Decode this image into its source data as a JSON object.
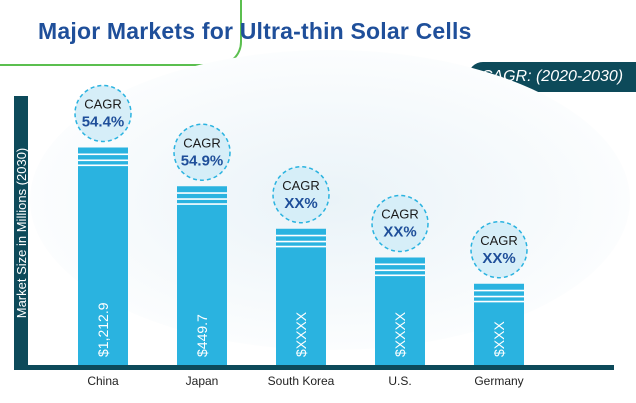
{
  "chart_data": {
    "type": "bar",
    "title": "Major Markets for Ultra-thin Solar Cells",
    "ylabel": "Market Size in Millions (2030)",
    "xlabel": "",
    "cagr_period": "CAGR: (2020-2030)",
    "categories": [
      "China",
      "Japan",
      "South Korea",
      "U.S.",
      "Germany"
    ],
    "values": [
      1212.9,
      449.7,
      null,
      null,
      null
    ],
    "value_labels": [
      "$1,212.9",
      "$449.7",
      "$XXXX",
      "$XXXX",
      "$XXX"
    ],
    "cagr_caption": [
      "CAGR",
      "CAGR",
      "CAGR",
      "CAGR",
      "CAGR"
    ],
    "cagr_values": [
      "54.4%",
      "54.9%",
      "XX%",
      "XX%",
      "XX%"
    ],
    "bar_level": [
      0.87,
      0.715,
      0.545,
      0.43,
      0.325
    ]
  },
  "colors": {
    "bar": "#2ab3e0",
    "bar_stripe": "#ffffff",
    "axis": "#0d4a5a",
    "bubble_fill": "#d6eef8",
    "bubble_stroke": "#2ab3e0",
    "title": "#1f4f9a",
    "cagr_value": "#1f4f9a"
  }
}
